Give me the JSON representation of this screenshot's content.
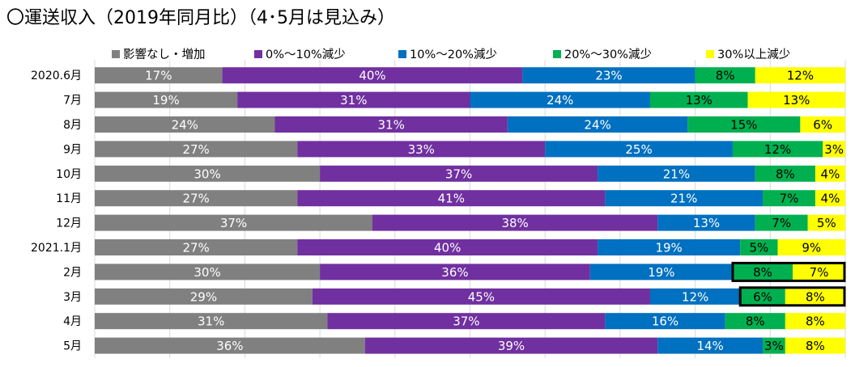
{
  "title": "〇運送収入（2019年同月比）（4･5月は見込み）",
  "chart_data": {
    "type": "bar",
    "orientation": "horizontal",
    "stacked": "percent",
    "categories": [
      "2020.6月",
      "7月",
      "8月",
      "9月",
      "10月",
      "11月",
      "12月",
      "2021.1月",
      "2月",
      "3月",
      "4月",
      "5月"
    ],
    "series": [
      {
        "name": "影響なし・増加",
        "color": "#808080",
        "values": [
          17,
          19,
          24,
          27,
          30,
          27,
          37,
          27,
          30,
          29,
          31,
          36
        ]
      },
      {
        "name": "0%～10%減少",
        "color": "#7030a0",
        "values": [
          40,
          31,
          31,
          33,
          37,
          41,
          38,
          40,
          36,
          45,
          37,
          39
        ]
      },
      {
        "name": "10%～20%減少",
        "color": "#0070c0",
        "values": [
          23,
          24,
          24,
          25,
          21,
          21,
          13,
          19,
          19,
          12,
          16,
          14
        ]
      },
      {
        "name": "20%～30%減少",
        "color": "#00b050",
        "values": [
          8,
          13,
          15,
          12,
          8,
          7,
          7,
          5,
          8,
          6,
          8,
          3
        ]
      },
      {
        "name": "30%以上減少",
        "color": "#ffff00",
        "values": [
          12,
          13,
          6,
          3,
          4,
          4,
          5,
          9,
          7,
          8,
          8,
          8
        ]
      }
    ],
    "value_suffix": "%",
    "highlighted_rows": [
      8,
      9
    ],
    "grid": true,
    "legend_position": "top"
  }
}
